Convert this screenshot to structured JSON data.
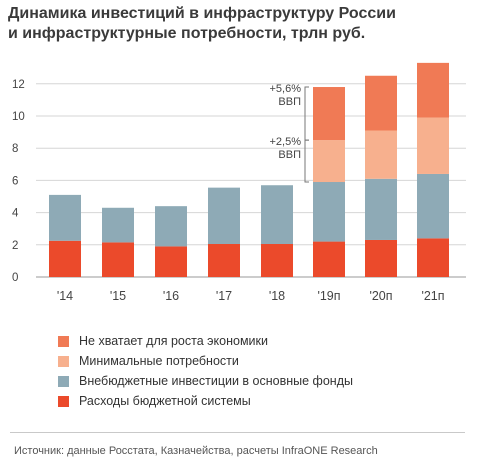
{
  "title_lines": [
    "Динамика инвестиций в инфраструктуру России",
    "и инфраструктурные потребности, трлн руб."
  ],
  "source": "Источник: данные Росстата, Казначейства, расчеты InfraONE Research",
  "colors": {
    "gap": "#f07a55",
    "minimal": "#f7b08e",
    "offbudget": "#8eaab6",
    "budget": "#eb4a2b"
  },
  "chart_data": {
    "type": "bar",
    "stacked": true,
    "categories": [
      "'14",
      "'15",
      "'16",
      "'17",
      "'18",
      "'19п",
      "'20п",
      "'21п"
    ],
    "ylim": [
      0,
      14
    ],
    "yticks": [
      0,
      2,
      4,
      6,
      8,
      10,
      12
    ],
    "grid": true,
    "series": [
      {
        "key": "budget",
        "name": "Расходы бюджетной системы",
        "values": [
          2.25,
          2.15,
          1.9,
          2.05,
          2.05,
          2.2,
          2.3,
          2.4
        ]
      },
      {
        "key": "offbudget",
        "name": "Внебюджетные инвестиции в основные фонды",
        "values": [
          2.85,
          2.15,
          2.5,
          3.5,
          3.65,
          3.7,
          3.8,
          4.0
        ]
      },
      {
        "key": "minimal",
        "name": "Минимальные потребности",
        "values": [
          0,
          0,
          0,
          0,
          0,
          2.6,
          3.0,
          3.5
        ]
      },
      {
        "key": "gap",
        "name": "Не хватает для роста экономики",
        "values": [
          0,
          0,
          0,
          0,
          0,
          3.3,
          3.4,
          3.4
        ]
      }
    ],
    "legend_order": [
      "gap",
      "minimal",
      "offbudget",
      "budget"
    ],
    "legend_position": "bottom-left",
    "annotations": [
      {
        "lines": [
          "+5,6%",
          "ВВП"
        ],
        "category": "'19п",
        "series": "gap"
      },
      {
        "lines": [
          "+2,5%",
          "ВВП"
        ],
        "category": "'19п",
        "series": "minimal"
      }
    ]
  }
}
